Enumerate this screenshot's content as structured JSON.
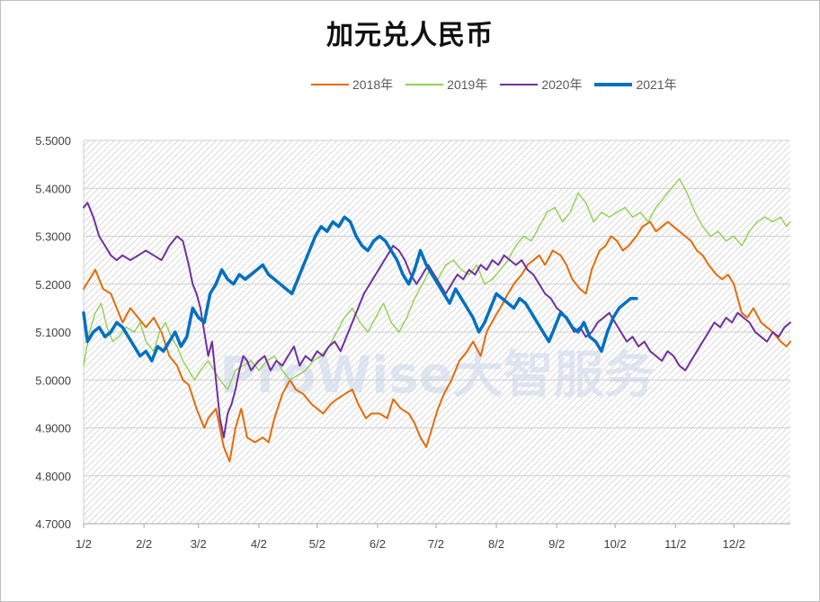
{
  "chart_data": {
    "type": "line",
    "title": "加元兑人民币",
    "xlabel": "",
    "ylabel": "",
    "ylim": [
      4.7,
      5.5
    ],
    "y_ticks": [
      "4.7000",
      "4.8000",
      "4.9000",
      "5.0000",
      "5.1000",
      "5.2000",
      "5.3000",
      "5.4000",
      "5.5000"
    ],
    "x_ticks": [
      "1/2",
      "2/2",
      "3/2",
      "4/2",
      "5/2",
      "6/2",
      "7/2",
      "8/2",
      "9/2",
      "10/2",
      "11/2",
      "12/2"
    ],
    "x_tick_days": [
      2,
      33,
      61,
      92,
      122,
      153,
      183,
      214,
      245,
      275,
      306,
      336
    ],
    "x_range_days": [
      2,
      365
    ],
    "grid": "horizontal",
    "legend_position": "top",
    "watermark": "ProWise大智服务",
    "series": [
      {
        "name": "2018年",
        "color": "#e36c09",
        "width": 2,
        "x": [
          2,
          5,
          8,
          12,
          16,
          19,
          22,
          26,
          30,
          34,
          38,
          42,
          46,
          50,
          53,
          56,
          60,
          64,
          66,
          70,
          74,
          77,
          80,
          83,
          86,
          90,
          94,
          97,
          100,
          104,
          108,
          111,
          115,
          119,
          122,
          125,
          129,
          132,
          136,
          140,
          143,
          147,
          150,
          154,
          158,
          161,
          165,
          169,
          172,
          175,
          178,
          181,
          184,
          187,
          191,
          195,
          199,
          202,
          206,
          209,
          213,
          216,
          220,
          223,
          227,
          230,
          233,
          236,
          239,
          243,
          247,
          250,
          253,
          257,
          260,
          263,
          267,
          270,
          273,
          276,
          279,
          282,
          286,
          289,
          293,
          296,
          299,
          302,
          305,
          308,
          311,
          314,
          317,
          320,
          323,
          327,
          330,
          333,
          336,
          340,
          343,
          346,
          350,
          353,
          356,
          360,
          363,
          365
        ],
        "y": [
          5.19,
          5.21,
          5.23,
          5.19,
          5.18,
          5.15,
          5.12,
          5.15,
          5.13,
          5.11,
          5.13,
          5.1,
          5.05,
          5.03,
          5.0,
          4.99,
          4.94,
          4.9,
          4.92,
          4.94,
          4.86,
          4.83,
          4.9,
          4.94,
          4.88,
          4.87,
          4.88,
          4.87,
          4.92,
          4.97,
          5.0,
          4.98,
          4.97,
          4.95,
          4.94,
          4.93,
          4.95,
          4.96,
          4.97,
          4.98,
          4.95,
          4.92,
          4.93,
          4.93,
          4.92,
          4.96,
          4.94,
          4.93,
          4.91,
          4.88,
          4.86,
          4.9,
          4.94,
          4.97,
          5.0,
          5.04,
          5.06,
          5.08,
          5.05,
          5.1,
          5.13,
          5.15,
          5.18,
          5.2,
          5.22,
          5.24,
          5.25,
          5.26,
          5.24,
          5.27,
          5.26,
          5.24,
          5.21,
          5.19,
          5.18,
          5.23,
          5.27,
          5.28,
          5.3,
          5.29,
          5.27,
          5.28,
          5.3,
          5.32,
          5.33,
          5.31,
          5.32,
          5.33,
          5.32,
          5.31,
          5.3,
          5.29,
          5.27,
          5.26,
          5.24,
          5.22,
          5.21,
          5.22,
          5.2,
          5.14,
          5.13,
          5.15,
          5.12,
          5.11,
          5.1,
          5.08,
          5.07,
          5.08
        ]
      },
      {
        "name": "2019年",
        "color": "#92d050",
        "width": 1.4,
        "x": [
          2,
          5,
          8,
          11,
          14,
          17,
          20,
          24,
          28,
          31,
          34,
          38,
          41,
          44,
          47,
          50,
          53,
          56,
          59,
          62,
          66,
          69,
          72,
          76,
          80,
          84,
          88,
          92,
          96,
          100,
          104,
          108,
          112,
          116,
          120,
          124,
          128,
          132,
          136,
          140,
          144,
          148,
          152,
          156,
          160,
          164,
          168,
          172,
          176,
          180,
          184,
          188,
          192,
          196,
          200,
          204,
          208,
          212,
          216,
          220,
          224,
          228,
          232,
          236,
          240,
          244,
          248,
          252,
          256,
          260,
          264,
          268,
          272,
          276,
          280,
          284,
          288,
          292,
          296,
          300,
          304,
          308,
          312,
          316,
          320,
          324,
          328,
          332,
          336,
          340,
          344,
          348,
          352,
          356,
          360,
          363,
          365
        ],
        "y": [
          5.03,
          5.1,
          5.14,
          5.16,
          5.11,
          5.08,
          5.09,
          5.11,
          5.1,
          5.12,
          5.08,
          5.06,
          5.1,
          5.12,
          5.09,
          5.07,
          5.04,
          5.02,
          5.0,
          5.02,
          5.04,
          5.02,
          5.0,
          4.98,
          5.02,
          5.03,
          5.04,
          5.02,
          5.04,
          5.05,
          5.02,
          5.0,
          5.01,
          5.02,
          5.04,
          5.05,
          5.07,
          5.1,
          5.13,
          5.15,
          5.12,
          5.1,
          5.13,
          5.16,
          5.12,
          5.1,
          5.13,
          5.17,
          5.2,
          5.23,
          5.21,
          5.24,
          5.25,
          5.23,
          5.22,
          5.24,
          5.2,
          5.21,
          5.23,
          5.25,
          5.28,
          5.3,
          5.29,
          5.32,
          5.35,
          5.36,
          5.33,
          5.35,
          5.39,
          5.37,
          5.33,
          5.35,
          5.34,
          5.35,
          5.36,
          5.34,
          5.35,
          5.33,
          5.36,
          5.38,
          5.4,
          5.42,
          5.39,
          5.35,
          5.32,
          5.3,
          5.31,
          5.29,
          5.3,
          5.28,
          5.31,
          5.33,
          5.34,
          5.33,
          5.34,
          5.32,
          5.33
        ]
      },
      {
        "name": "2020年",
        "color": "#7030a0",
        "width": 2,
        "x": [
          2,
          4,
          7,
          10,
          13,
          16,
          19,
          22,
          26,
          30,
          34,
          38,
          42,
          46,
          50,
          53,
          56,
          58,
          60,
          62,
          64,
          66,
          68,
          70,
          72,
          74,
          76,
          78,
          80,
          82,
          84,
          86,
          88,
          90,
          92,
          95,
          98,
          101,
          104,
          107,
          110,
          113,
          116,
          119,
          122,
          125,
          128,
          131,
          134,
          137,
          140,
          143,
          146,
          149,
          152,
          155,
          158,
          161,
          164,
          167,
          170,
          173,
          176,
          179,
          182,
          185,
          188,
          191,
          194,
          197,
          200,
          203,
          206,
          209,
          212,
          215,
          218,
          221,
          224,
          227,
          230,
          233,
          236,
          239,
          242,
          245,
          248,
          251,
          254,
          257,
          260,
          263,
          266,
          269,
          272,
          275,
          278,
          281,
          284,
          287,
          290,
          293,
          296,
          299,
          302,
          305,
          308,
          311,
          314,
          317,
          320,
          323,
          326,
          329,
          332,
          335,
          338,
          341,
          344,
          347,
          350,
          353,
          356,
          359,
          362,
          365
        ],
        "y": [
          5.36,
          5.37,
          5.34,
          5.3,
          5.28,
          5.26,
          5.25,
          5.26,
          5.25,
          5.26,
          5.27,
          5.26,
          5.25,
          5.28,
          5.3,
          5.29,
          5.24,
          5.2,
          5.18,
          5.15,
          5.1,
          5.05,
          5.08,
          5.0,
          4.92,
          4.88,
          4.93,
          4.95,
          4.98,
          5.02,
          5.05,
          5.04,
          5.02,
          5.03,
          5.04,
          5.05,
          5.02,
          5.04,
          5.03,
          5.05,
          5.07,
          5.03,
          5.05,
          5.04,
          5.06,
          5.05,
          5.07,
          5.08,
          5.06,
          5.09,
          5.12,
          5.15,
          5.18,
          5.2,
          5.22,
          5.24,
          5.26,
          5.28,
          5.27,
          5.25,
          5.22,
          5.2,
          5.22,
          5.24,
          5.22,
          5.2,
          5.18,
          5.2,
          5.22,
          5.21,
          5.23,
          5.22,
          5.24,
          5.23,
          5.25,
          5.24,
          5.26,
          5.25,
          5.24,
          5.25,
          5.23,
          5.22,
          5.2,
          5.18,
          5.17,
          5.15,
          5.14,
          5.12,
          5.1,
          5.11,
          5.09,
          5.1,
          5.12,
          5.13,
          5.14,
          5.12,
          5.1,
          5.08,
          5.09,
          5.07,
          5.08,
          5.06,
          5.05,
          5.04,
          5.06,
          5.05,
          5.03,
          5.02,
          5.04,
          5.06,
          5.08,
          5.1,
          5.12,
          5.11,
          5.13,
          5.12,
          5.14,
          5.13,
          5.12,
          5.1,
          5.09,
          5.08,
          5.1,
          5.09,
          5.11,
          5.12
        ]
      },
      {
        "name": "2021年",
        "color": "#0070c0",
        "width": 3.5,
        "x": [
          2,
          4,
          7,
          10,
          13,
          16,
          19,
          22,
          25,
          28,
          31,
          34,
          37,
          40,
          43,
          46,
          49,
          52,
          55,
          58,
          61,
          64,
          67,
          70,
          73,
          76,
          79,
          82,
          85,
          88,
          91,
          94,
          97,
          100,
          103,
          106,
          109,
          112,
          115,
          118,
          121,
          124,
          127,
          130,
          133,
          136,
          139,
          142,
          145,
          148,
          151,
          154,
          157,
          160,
          163,
          166,
          169,
          172,
          175,
          178,
          181,
          184,
          187,
          190,
          193,
          196,
          199,
          202,
          205,
          208,
          211,
          214,
          217,
          220,
          223,
          226,
          229,
          232,
          235,
          238,
          241,
          244,
          247,
          250,
          253,
          256,
          259,
          262,
          265,
          268,
          271,
          274,
          277,
          280,
          283,
          286
        ],
        "y": [
          5.14,
          5.08,
          5.1,
          5.11,
          5.09,
          5.1,
          5.12,
          5.11,
          5.09,
          5.07,
          5.05,
          5.06,
          5.04,
          5.07,
          5.06,
          5.08,
          5.1,
          5.07,
          5.09,
          5.15,
          5.13,
          5.12,
          5.18,
          5.2,
          5.23,
          5.21,
          5.2,
          5.22,
          5.21,
          5.22,
          5.23,
          5.24,
          5.22,
          5.21,
          5.2,
          5.19,
          5.18,
          5.21,
          5.24,
          5.27,
          5.3,
          5.32,
          5.31,
          5.33,
          5.32,
          5.34,
          5.33,
          5.3,
          5.28,
          5.27,
          5.29,
          5.3,
          5.29,
          5.27,
          5.25,
          5.22,
          5.2,
          5.23,
          5.27,
          5.24,
          5.22,
          5.2,
          5.18,
          5.16,
          5.19,
          5.17,
          5.15,
          5.13,
          5.1,
          5.12,
          5.15,
          5.18,
          5.17,
          5.16,
          5.15,
          5.17,
          5.16,
          5.14,
          5.12,
          5.1,
          5.08,
          5.11,
          5.14,
          5.13,
          5.11,
          5.1,
          5.12,
          5.09,
          5.08,
          5.06,
          5.1,
          5.13,
          5.15,
          5.16,
          5.17,
          5.17
        ]
      }
    ]
  }
}
